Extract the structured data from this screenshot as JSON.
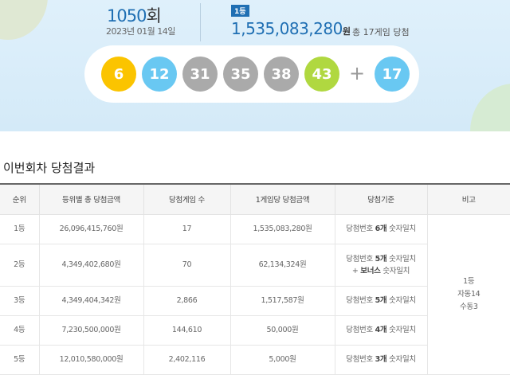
{
  "draw": {
    "round": "1050",
    "round_suffix": "회",
    "date": "2023년 01월 14일",
    "badge": "1등",
    "first_prize": "1,535,083,280",
    "won": "원",
    "winners_text": "총 17게임 당첨"
  },
  "balls": [
    {
      "n": "6",
      "color": "#fbc400"
    },
    {
      "n": "12",
      "color": "#69c8f2"
    },
    {
      "n": "31",
      "color": "#aaaaaa"
    },
    {
      "n": "35",
      "color": "#aaaaaa"
    },
    {
      "n": "38",
      "color": "#aaaaaa"
    },
    {
      "n": "43",
      "color": "#b0d840"
    }
  ],
  "plus": "+",
  "bonus": {
    "n": "17",
    "color": "#69c8f2"
  },
  "section_title": "이번회차 당첨결과",
  "table": {
    "headers": [
      "순위",
      "등위별 총 당첨금액",
      "당첨게임 수",
      "1게임당 당첨금액",
      "당첨기준",
      "비고"
    ],
    "rows": [
      {
        "rank": "1등",
        "total": "26,096,415,760원",
        "count": "17",
        "per": "1,535,083,280원",
        "c1": "당첨번호 ",
        "c2": "6개",
        "c3": " 숫자일치"
      },
      {
        "rank": "2등",
        "total": "4,349,402,680원",
        "count": "70",
        "per": "62,134,324원",
        "c1": "당첨번호 ",
        "c2": "5개",
        "c3": " 숫자일치",
        "c4": "+ ",
        "c5": "보너스",
        "c6": " 숫자일치"
      },
      {
        "rank": "3등",
        "total": "4,349,404,342원",
        "count": "2,866",
        "per": "1,517,587원",
        "c1": "당첨번호 ",
        "c2": "5개",
        "c3": " 숫자일치"
      },
      {
        "rank": "4등",
        "total": "7,230,500,000원",
        "count": "144,610",
        "per": "50,000원",
        "c1": "당첨번호 ",
        "c2": "4개",
        "c3": " 숫자일치"
      },
      {
        "rank": "5등",
        "total": "12,010,580,000원",
        "count": "2,402,116",
        "per": "5,000원",
        "c1": "당첨번호 ",
        "c2": "3개",
        "c3": " 숫자일치"
      }
    ],
    "note": [
      "1등",
      "자동14",
      "수동3"
    ]
  }
}
